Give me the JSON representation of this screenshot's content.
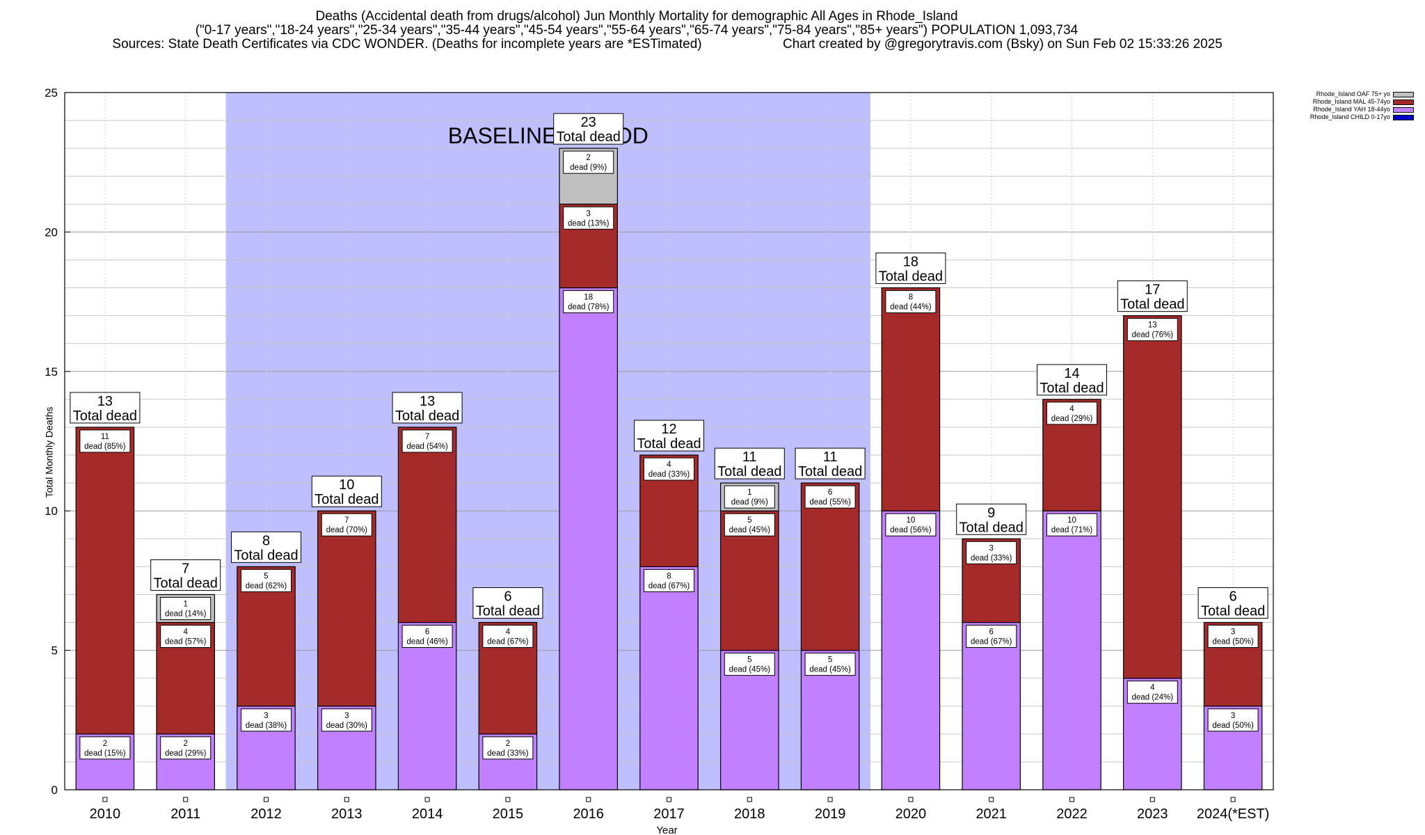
{
  "header": {
    "line1": "Deaths (Accidental death from drugs/alcohol) Jun Monthly Mortality for demographic All Ages in Rhode_Island",
    "line2": "(\"0-17 years\",\"18-24 years\",\"25-34 years\",\"35-44 years\",\"45-54 years\",\"55-64 years\",\"65-74 years\",\"75-84 years\",\"85+ years\") POPULATION 1,093,734",
    "line3": "Sources: State Death Certificates via CDC WONDER. (Deaths for incomplete years are *ESTimated)",
    "credit": "Chart created by @gregorytravis.com (Bsky) on Sun Feb 02 15:33:26 2025"
  },
  "colors": {
    "child": "#0000cc",
    "yah": "#c080ff",
    "mal": "#a52a2a",
    "oaf": "#c0c0c0",
    "baseline": "#bfbfff"
  },
  "chart_data": {
    "type": "bar",
    "stacked": true,
    "title": "Deaths (Accidental death from drugs/alcohol) Jun Monthly Mortality for demographic All Ages in Rhode_Island",
    "xlabel": "Year",
    "ylabel": "Total Monthly Deaths",
    "ylim": [
      0,
      25
    ],
    "yticks": [
      0,
      5,
      10,
      15,
      20,
      25
    ],
    "grid": true,
    "legend_position": "top-right",
    "categories": [
      "2010",
      "2011",
      "2012",
      "2013",
      "2014",
      "2015",
      "2016",
      "2017",
      "2018",
      "2019",
      "2020",
      "2021",
      "2022",
      "2023",
      "2024(*EST)"
    ],
    "series": [
      {
        "name": "Rhode_Island CHILD 0-17yo",
        "key": "child",
        "values": [
          0,
          0,
          0,
          0,
          0,
          0,
          0,
          0,
          0,
          0,
          0,
          0,
          0,
          0,
          0
        ]
      },
      {
        "name": "Rhode_Island YAH 18-44yo",
        "key": "yah",
        "values": [
          2,
          2,
          3,
          3,
          6,
          2,
          18,
          8,
          5,
          5,
          10,
          6,
          10,
          4,
          3
        ]
      },
      {
        "name": "Rhode_Island MAL 45-74yo",
        "key": "mal",
        "values": [
          11,
          4,
          5,
          7,
          7,
          4,
          3,
          4,
          5,
          6,
          8,
          3,
          4,
          13,
          3
        ]
      },
      {
        "name": "Rhode_Island OAF 75+ yo",
        "key": "oaf",
        "values": [
          0,
          1,
          0,
          0,
          0,
          0,
          2,
          0,
          1,
          0,
          0,
          0,
          0,
          0,
          0
        ]
      }
    ],
    "segment_labels": {
      "yah": [
        "2\ndead (15%)",
        "2\ndead (29%)",
        "3\ndead (38%)",
        "3\ndead (30%)",
        "6\ndead (46%)",
        "2\ndead (33%)",
        "18\ndead (78%)",
        "8\ndead (67%)",
        "5\ndead (45%)",
        "5\ndead (45%)",
        "10\ndead (56%)",
        "6\ndead (67%)",
        "10\ndead (71%)",
        "4\ndead (24%)",
        "3\ndead (50%)"
      ],
      "mal": [
        "11\ndead (85%)",
        "4\ndead (57%)",
        "5\ndead (62%)",
        "7\ndead (70%)",
        "7\ndead (54%)",
        "4\ndead (67%)",
        "3\ndead (13%)",
        "4\ndead (33%)",
        "5\ndead (45%)",
        "6\ndead (55%)",
        "8\ndead (44%)",
        "3\ndead (33%)",
        "4\ndead (29%)",
        "13\ndead (76%)",
        "3\ndead (50%)"
      ],
      "oaf": [
        "",
        "1\ndead (14%)",
        "",
        "",
        "",
        "",
        "2\ndead (9%)",
        "",
        "1\ndead (9%)",
        "",
        "",
        "",
        "",
        "",
        ""
      ]
    },
    "totals": [
      13,
      7,
      8,
      10,
      13,
      6,
      23,
      12,
      11,
      11,
      18,
      9,
      14,
      17,
      6
    ],
    "total_suffix": "Total dead",
    "baseline_period": {
      "label": "BASELINE PERIOD",
      "from": "2012",
      "to": "2019"
    }
  }
}
